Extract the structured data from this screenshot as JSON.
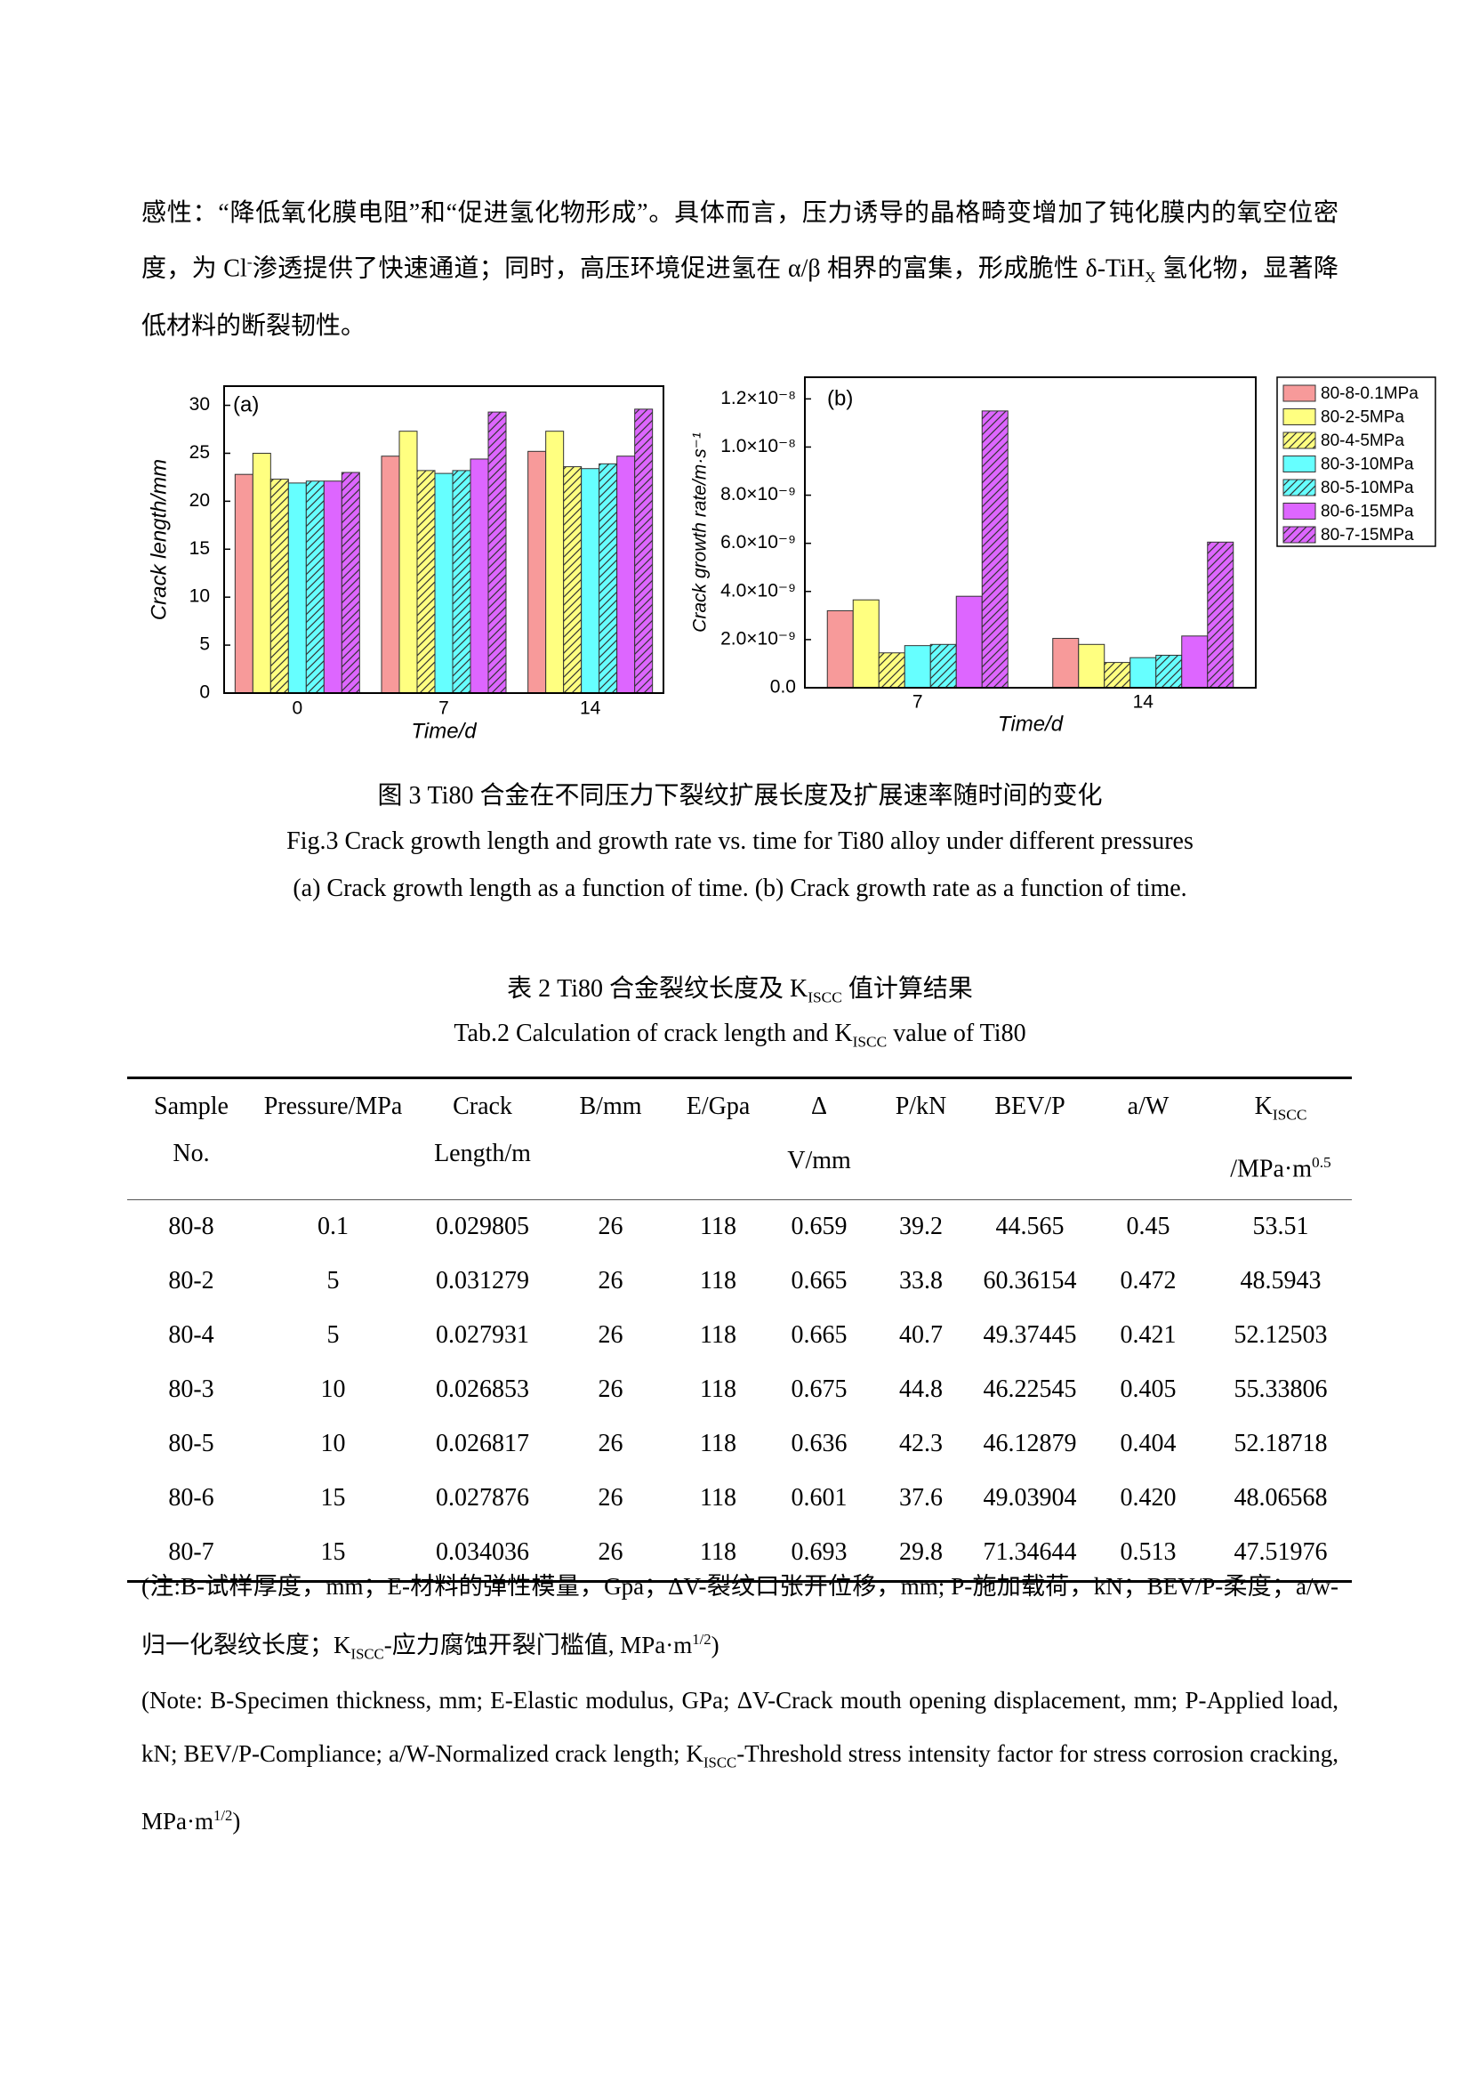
{
  "paragraph": [
    "感性：“降低氧化膜电阻”和“促进氢化物形成”。具体而言，压力诱导的晶格畸变增加了钝化膜内的氧空位密度，为 Cl",
    "-",
    "渗透提供了快速通道；同时，高压环境促进氢在 α/β 相界的富集，形成脆性 δ-TiH",
    "X",
    " 氢化物，显著降低材料的断裂韧性。"
  ],
  "chart_data": [
    {
      "type": "bar",
      "panel_label": "(a)",
      "y_label": "Crack length/mm",
      "x_label": "Time/d",
      "categories": [
        "0",
        "7",
        "14"
      ],
      "ylim": [
        0,
        32
      ],
      "yticks": [
        0,
        5,
        10,
        15,
        20,
        25,
        30
      ],
      "series": [
        {
          "color": "#f79a9a",
          "hatch": false,
          "values": [
            22.8,
            24.7,
            25.2
          ]
        },
        {
          "color": "#ffff80",
          "hatch": false,
          "values": [
            25.0,
            27.3,
            27.3
          ]
        },
        {
          "color": "#ffff80",
          "hatch": true,
          "values": [
            22.3,
            23.2,
            23.6
          ]
        },
        {
          "color": "#66ffff",
          "hatch": false,
          "values": [
            21.9,
            22.9,
            23.4
          ]
        },
        {
          "color": "#66ffff",
          "hatch": true,
          "values": [
            22.1,
            23.2,
            23.9
          ]
        },
        {
          "color": "#dd66ff",
          "hatch": false,
          "values": [
            22.1,
            24.4,
            24.7
          ]
        },
        {
          "color": "#dd66ff",
          "hatch": true,
          "values": [
            23.0,
            29.3,
            29.6
          ]
        }
      ]
    },
    {
      "type": "bar",
      "panel_label": "(b)",
      "y_label": "Crack growth rate/m·s⁻¹",
      "x_label": "Time/d",
      "categories": [
        "7",
        "14"
      ],
      "ylim": [
        0,
        1.29e-08
      ],
      "yticks": [
        {
          "value": 0,
          "label": "0.0"
        },
        {
          "value": 2e-09,
          "label": "2.0×10⁻⁹"
        },
        {
          "value": 4e-09,
          "label": "4.0×10⁻⁹"
        },
        {
          "value": 6e-09,
          "label": "6.0×10⁻⁹"
        },
        {
          "value": 8e-09,
          "label": "8.0×10⁻⁹"
        },
        {
          "value": 1e-08,
          "label": "1.0×10⁻⁸"
        },
        {
          "value": 1.2e-08,
          "label": "1.2×10⁻⁸"
        }
      ],
      "legend": "outside-right",
      "series": [
        {
          "name": "80-8-0.1MPa",
          "color": "#f79a9a",
          "hatch": false,
          "values": [
            3.2e-09,
            2.05e-09
          ]
        },
        {
          "name": "80-2-5MPa",
          "color": "#ffff80",
          "hatch": false,
          "values": [
            3.65e-09,
            1.8e-09
          ]
        },
        {
          "name": "80-4-5MPa",
          "color": "#ffff80",
          "hatch": true,
          "values": [
            1.45e-09,
            1.05e-09
          ]
        },
        {
          "name": "80-3-10MPa",
          "color": "#66ffff",
          "hatch": false,
          "values": [
            1.75e-09,
            1.25e-09
          ]
        },
        {
          "name": "80-5-10MPa",
          "color": "#66ffff",
          "hatch": true,
          "values": [
            1.8e-09,
            1.35e-09
          ]
        },
        {
          "name": "80-6-15MPa",
          "color": "#dd66ff",
          "hatch": false,
          "values": [
            3.8e-09,
            2.15e-09
          ]
        },
        {
          "name": "80-7-15MPa",
          "color": "#dd66ff",
          "hatch": true,
          "values": [
            1.15e-08,
            6.05e-09
          ]
        }
      ]
    }
  ],
  "figure_caption": {
    "cn": "图 3 Ti80 合金在不同压力下裂纹扩展长度及扩展速率随时间的变化",
    "en": "Fig.3 Crack growth length and growth rate vs. time for Ti80 alloy under different pressures",
    "sub": "(a) Crack growth length as a function of time. (b) Crack growth rate as a function of time."
  },
  "table_title": {
    "cn": [
      "表 2 Ti80 合金裂纹长度及 K",
      "ISCC",
      " 值计算结果"
    ],
    "en": [
      "Tab.2 Calculation of crack length and K",
      "ISCC",
      " value of Ti80"
    ]
  },
  "table": {
    "header": [
      [
        "Sample",
        "No."
      ],
      [
        "Pressure/MPa"
      ],
      [
        "Crack",
        "Length/m"
      ],
      [
        "B/mm"
      ],
      [
        "E/Gpa"
      ],
      [
        "Δ",
        "V/mm"
      ],
      [
        "P/kN"
      ],
      [
        "BEV/P"
      ],
      [
        "a/W"
      ],
      [
        "K",
        "ISCC",
        "/MPa·m",
        "0.5"
      ]
    ],
    "rows": [
      [
        "80-8",
        "0.1",
        "0.029805",
        "26",
        "118",
        "0.659",
        "39.2",
        "44.565",
        "0.45",
        "53.51"
      ],
      [
        "80-2",
        "5",
        "0.031279",
        "26",
        "118",
        "0.665",
        "33.8",
        "60.36154",
        "0.472",
        "48.5943"
      ],
      [
        "80-4",
        "5",
        "0.027931",
        "26",
        "118",
        "0.665",
        "40.7",
        "49.37445",
        "0.421",
        "52.12503"
      ],
      [
        "80-3",
        "10",
        "0.026853",
        "26",
        "118",
        "0.675",
        "44.8",
        "46.22545",
        "0.405",
        "55.33806"
      ],
      [
        "80-5",
        "10",
        "0.026817",
        "26",
        "118",
        "0.636",
        "42.3",
        "46.12879",
        "0.404",
        "52.18718"
      ],
      [
        "80-6",
        "15",
        "0.027876",
        "26",
        "118",
        "0.601",
        "37.6",
        "49.03904",
        "0.420",
        "48.06568"
      ],
      [
        "80-7",
        "15",
        "0.034036",
        "26",
        "118",
        "0.693",
        "29.8",
        "71.34644",
        "0.513",
        "47.51976"
      ]
    ]
  },
  "notes": {
    "cn": [
      "(注:B-试样厚度，mm；E-材料的弹性模量，Gpa；ΔV-裂纹口张开位移，mm; P-施加载荷，kN；BEV/P-柔度；a/w-归一化裂纹长度；K",
      "ISCC",
      "-应力腐蚀开裂门槛值, MPa·m",
      "1/2",
      ")"
    ],
    "en": [
      "(Note: B-Specimen thickness, mm; E-Elastic modulus, GPa; ΔV-Crack mouth opening displacement, mm; P-Applied load, kN; BEV/P-Compliance; a/W-Normalized crack length; K",
      "ISCC",
      "-Threshold stress intensity factor for stress corrosion cracking, MPa·m",
      "1/2",
      ")"
    ]
  }
}
